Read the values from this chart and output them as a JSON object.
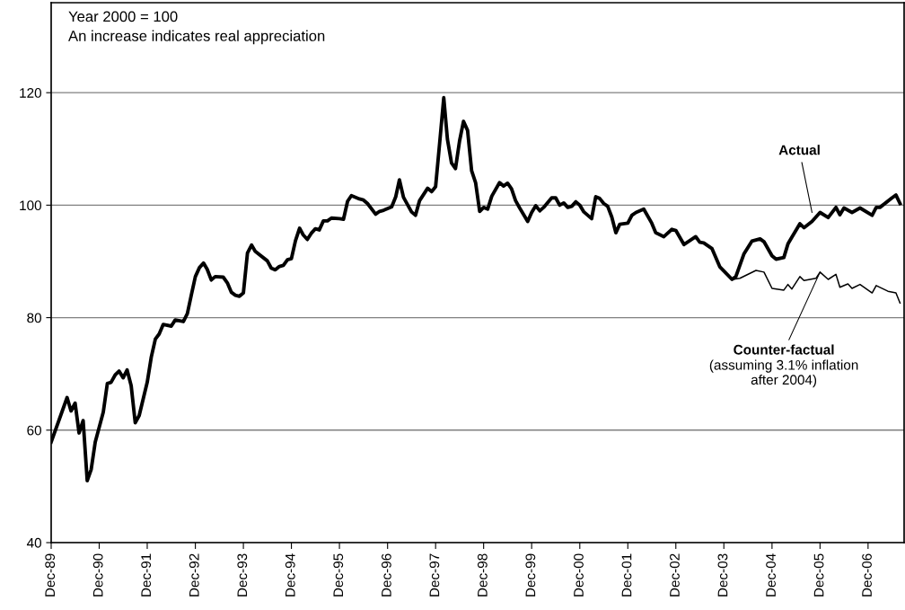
{
  "chart_data": {
    "type": "line",
    "xlim": [
      "1989-12",
      "2007-09"
    ],
    "ylim": [
      40,
      136
    ],
    "xticks": [
      {
        "value": "1989-12",
        "label": "Dec-89"
      },
      {
        "value": "1990-12",
        "label": "Dec-90"
      },
      {
        "value": "1991-12",
        "label": "Dec-91"
      },
      {
        "value": "1992-12",
        "label": "Dec-92"
      },
      {
        "value": "1993-12",
        "label": "Dec-93"
      },
      {
        "value": "1994-12",
        "label": "Dec-94"
      },
      {
        "value": "1995-12",
        "label": "Dec-95"
      },
      {
        "value": "1996-12",
        "label": "Dec-96"
      },
      {
        "value": "1997-12",
        "label": "Dec-97"
      },
      {
        "value": "1998-12",
        "label": "Dec-98"
      },
      {
        "value": "1999-12",
        "label": "Dec-99"
      },
      {
        "value": "2000-12",
        "label": "Dec-00"
      },
      {
        "value": "2001-12",
        "label": "Dec-01"
      },
      {
        "value": "2002-12",
        "label": "Dec-02"
      },
      {
        "value": "2003-12",
        "label": "Dec-03"
      },
      {
        "value": "2004-12",
        "label": "Dec-04"
      },
      {
        "value": "2005-12",
        "label": "Dec-05"
      },
      {
        "value": "2006-12",
        "label": "Dec-06"
      }
    ],
    "yticks": [
      40,
      60,
      80,
      100,
      120
    ],
    "grid": "y",
    "legend": false,
    "marker": "none",
    "line_style": "solid",
    "series": [
      {
        "color": "#000000",
        "x": [
          "1989-12",
          "1990-04",
          "1990-05",
          "1990-06",
          "1990-07",
          "1990-08",
          "1990-09",
          "1990-10",
          "1990-11",
          "1991-01",
          "1991-02",
          "1991-03",
          "1991-04",
          "1991-05",
          "1991-06",
          "1991-07",
          "1991-08",
          "1991-09",
          "1991-10",
          "1991-12",
          "1992-01",
          "1992-02",
          "1992-03",
          "1992-04",
          "1992-06",
          "1992-07",
          "1992-09",
          "1992-10",
          "1992-11",
          "1992-12",
          "1993-01",
          "1993-02",
          "1993-03",
          "1993-04",
          "1993-05",
          "1993-07",
          "1993-08",
          "1993-09",
          "1993-10",
          "1993-11",
          "1993-12",
          "1994-01",
          "1994-02",
          "1994-03",
          "1994-06",
          "1994-07",
          "1994-08",
          "1994-09",
          "1994-10",
          "1994-11",
          "1994-12",
          "1995-01",
          "1995-02",
          "1995-03",
          "1995-04",
          "1995-05",
          "1995-06",
          "1995-07",
          "1995-08",
          "1995-09",
          "1995-10",
          "1995-12",
          "1996-01",
          "1996-02",
          "1996-03",
          "1996-05",
          "1996-06",
          "1996-07",
          "1996-09",
          "1996-10",
          "1996-11",
          "1997-01",
          "1997-02",
          "1997-03",
          "1997-04",
          "1997-06",
          "1997-07",
          "1997-08",
          "1997-10",
          "1997-11",
          "1997-12",
          "1998-01",
          "1998-02",
          "1998-03",
          "1998-04",
          "1998-05",
          "1998-06",
          "1998-07",
          "1998-08",
          "1998-09",
          "1998-10",
          "1998-11",
          "1998-12",
          "1999-01",
          "1999-02",
          "1999-04",
          "1999-05",
          "1999-06",
          "1999-07",
          "1999-08",
          "1999-09",
          "1999-11",
          "1999-12",
          "2000-01",
          "2000-02",
          "2000-03",
          "2000-05",
          "2000-06",
          "2000-07",
          "2000-08",
          "2000-09",
          "2000-10",
          "2000-11",
          "2000-12",
          "2001-01",
          "2001-03",
          "2001-04",
          "2001-05",
          "2001-06",
          "2001-07",
          "2001-08",
          "2001-09",
          "2001-10",
          "2001-12",
          "2002-01",
          "2002-02",
          "2002-04",
          "2002-06",
          "2002-07",
          "2002-09",
          "2002-11",
          "2002-12",
          "2003-02",
          "2003-05",
          "2003-06",
          "2003-07",
          "2003-09",
          "2003-11",
          "2003-12",
          "2004-02",
          "2004-03",
          "2004-05",
          "2004-07",
          "2004-09",
          "2004-10",
          "2004-12",
          "2005-01",
          "2005-03",
          "2005-04",
          "2005-05",
          "2005-07",
          "2005-08",
          "2005-10",
          "2005-12",
          "2006-02",
          "2006-04",
          "2006-05",
          "2006-06",
          "2006-08",
          "2006-10",
          "2007-01",
          "2007-02",
          "2007-03",
          "2007-06",
          "2007-07",
          "2007-08"
        ],
        "values": [
          57.9,
          65.8,
          63.4,
          64.8,
          59.5,
          61.7,
          51.0,
          53.0,
          57.9,
          63.2,
          68.3,
          68.5,
          69.8,
          70.5,
          69.3,
          70.7,
          67.9,
          61.3,
          62.6,
          68.5,
          73.0,
          76.2,
          77.1,
          78.8,
          78.5,
          79.6,
          79.3,
          80.7,
          84.1,
          87.3,
          88.9,
          89.7,
          88.6,
          86.7,
          87.3,
          87.2,
          86.2,
          84.5,
          84.0,
          83.8,
          84.4,
          91.5,
          92.9,
          91.8,
          90.1,
          88.8,
          88.5,
          89.1,
          89.3,
          90.3,
          90.5,
          93.7,
          95.9,
          94.7,
          93.9,
          95.0,
          95.8,
          95.6,
          97.2,
          97.2,
          97.7,
          97.6,
          97.5,
          100.7,
          101.7,
          101.1,
          100.9,
          100.3,
          98.4,
          98.9,
          99.1,
          99.7,
          101.5,
          104.5,
          101.4,
          98.8,
          98.2,
          100.8,
          103.0,
          102.4,
          103.3,
          111.1,
          119.1,
          111.7,
          107.5,
          106.5,
          111.4,
          114.9,
          113.3,
          106.1,
          104.0,
          98.9,
          99.6,
          99.3,
          101.6,
          104.0,
          103.4,
          103.9,
          102.9,
          100.8,
          99.5,
          97.1,
          98.7,
          99.9,
          99.0,
          99.6,
          101.3,
          101.3,
          100.0,
          100.4,
          99.6,
          99.8,
          100.6,
          100.0,
          98.8,
          97.6,
          101.5,
          101.2,
          100.3,
          99.8,
          97.9,
          95.1,
          96.6,
          96.8,
          98.2,
          98.7,
          99.3,
          96.8,
          95.1,
          94.4,
          95.7,
          95.5,
          93.0,
          94.4,
          93.4,
          93.3,
          92.3,
          89.0,
          88.3,
          86.8,
          87.3,
          91.3,
          93.6,
          94.0,
          93.5,
          91.0,
          90.4,
          90.7,
          93.1,
          94.3,
          96.7,
          96.0,
          97.1,
          98.7,
          97.8,
          99.6,
          98.3,
          99.5,
          98.7,
          99.5,
          98.2,
          99.6,
          99.6,
          101.3,
          101.8,
          100.3
        ]
      },
      {
        "color": "#000000",
        "x": [
          "2004-02",
          "2004-04",
          "2004-08",
          "2004-10",
          "2004-12",
          "2005-03",
          "2005-04",
          "2005-05",
          "2005-07",
          "2005-08",
          "2005-11",
          "2005-12",
          "2006-02",
          "2006-04",
          "2006-05",
          "2006-07",
          "2006-08",
          "2006-10",
          "2007-01",
          "2007-02",
          "2007-05",
          "2007-07",
          "2007-08"
        ],
        "values": [
          86.8,
          87.0,
          88.4,
          88.1,
          85.2,
          84.9,
          85.9,
          85.1,
          87.3,
          86.6,
          87.0,
          88.1,
          86.8,
          87.7,
          85.4,
          86.0,
          85.2,
          85.9,
          84.4,
          85.7,
          84.7,
          84.4,
          82.6
        ]
      }
    ],
    "annotations": [
      "Year 2000 = 100\nAn increase indicates real appreciation",
      {
        "text": "Actual",
        "x": "2005-10",
        "y": 98.7
      },
      {
        "text": "Counter-factual",
        "x": "2005-12",
        "y": 88.1
      },
      "(assuming 3.1% inflation\nafter 2004)"
    ]
  }
}
